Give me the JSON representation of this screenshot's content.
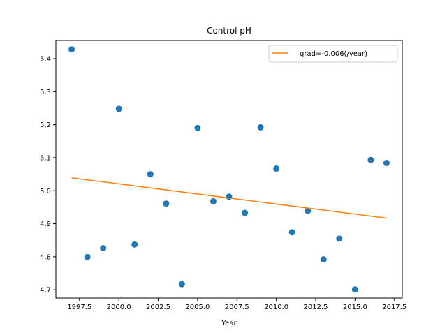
{
  "chart_data": {
    "type": "scatter",
    "title": "Control pH",
    "xlabel": "Year",
    "ylabel": "",
    "xlim": [
      1996.0,
      2018.0
    ],
    "ylim": [
      4.675,
      5.455
    ],
    "xticks": [
      1997.5,
      2000.0,
      2002.5,
      2005.0,
      2007.5,
      2010.0,
      2012.5,
      2015.0,
      2017.5
    ],
    "xtick_labels": [
      "1997.5",
      "2000.0",
      "2002.5",
      "2005.0",
      "2007.5",
      "2010.0",
      "2012.5",
      "2015.0",
      "2017.5"
    ],
    "yticks": [
      4.7,
      4.8,
      4.9,
      5.0,
      5.1,
      5.2,
      5.3,
      5.4
    ],
    "ytick_labels": [
      "4.7",
      "4.8",
      "4.9",
      "5.0",
      "5.1",
      "5.2",
      "5.3",
      "5.4"
    ],
    "grid": false,
    "legend_position": "top-right",
    "series": [
      {
        "type": "scatter",
        "color": "#1f77b4",
        "x": [
          1997,
          1998,
          1999,
          2000,
          2001,
          2002,
          2003,
          2004,
          2005,
          2006,
          2007,
          2008,
          2009,
          2010,
          2011,
          2012,
          2013,
          2014,
          2015,
          2016,
          2017
        ],
        "y": [
          5.428,
          4.799,
          4.826,
          5.248,
          4.837,
          5.05,
          4.961,
          4.717,
          5.19,
          4.968,
          4.982,
          4.933,
          5.192,
          5.067,
          4.874,
          4.939,
          4.792,
          4.855,
          4.701,
          5.093,
          5.084
        ]
      },
      {
        "type": "line",
        "name": "grad=-0.006(/year)",
        "color": "#ff7f0e",
        "x": [
          1997,
          2017
        ],
        "y": [
          5.039,
          4.917
        ]
      }
    ]
  }
}
